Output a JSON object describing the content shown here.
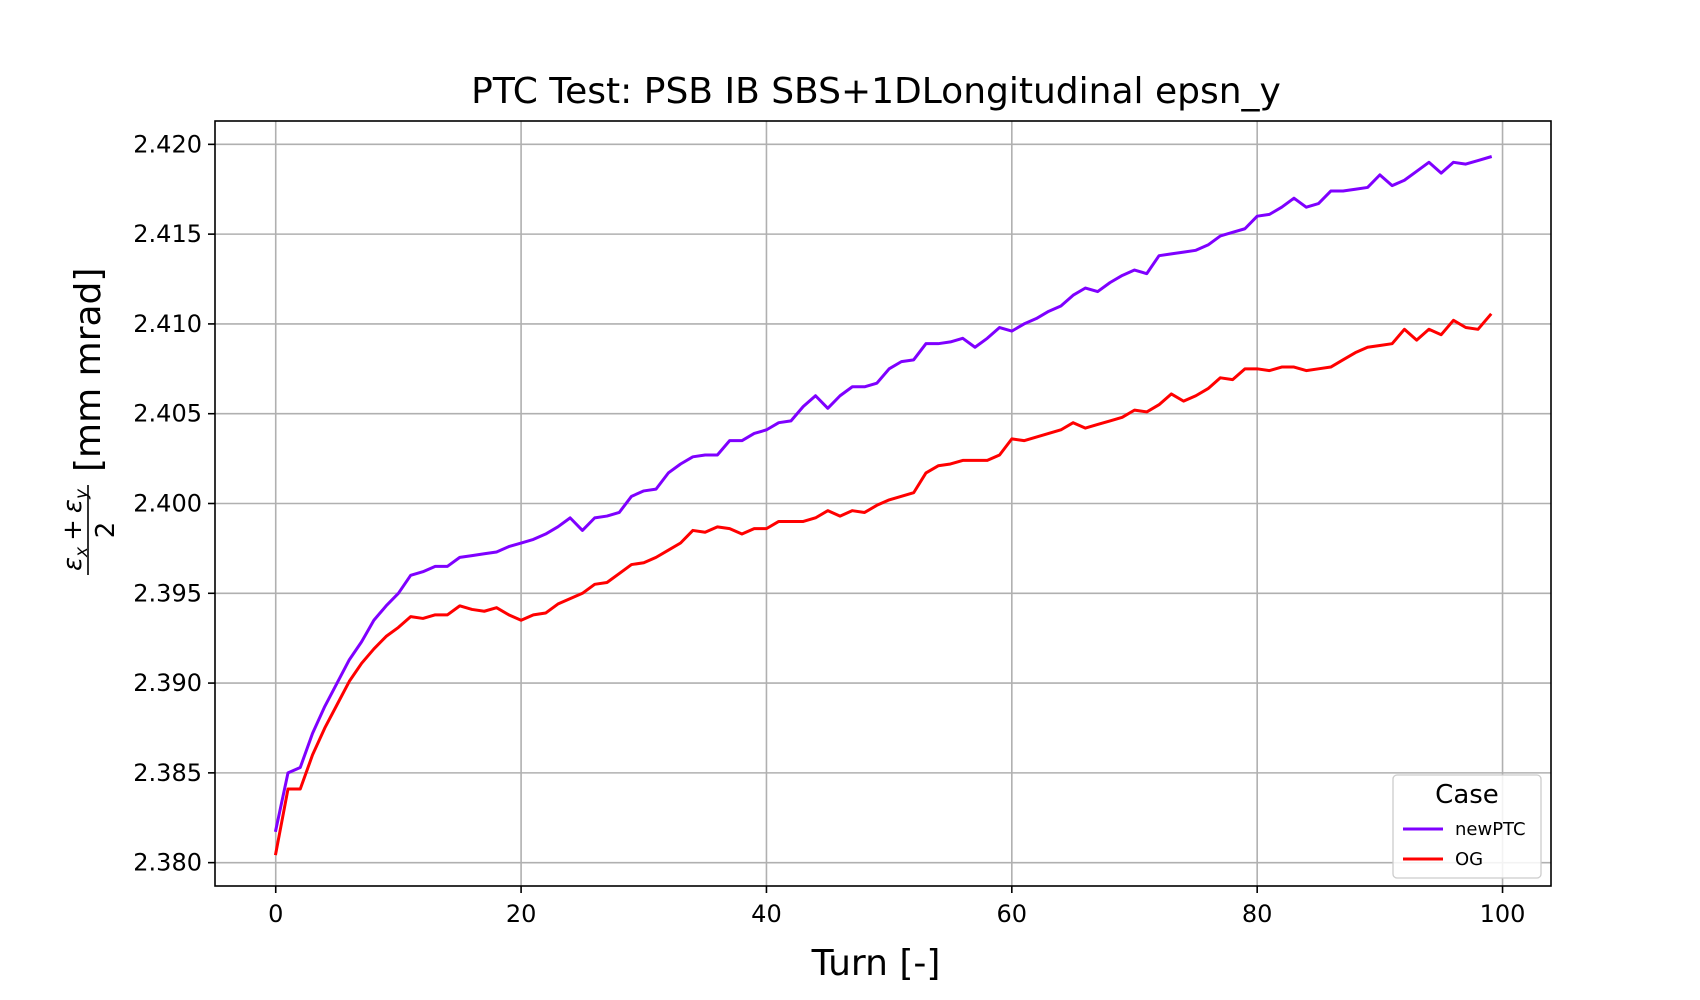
{
  "chart_data": {
    "type": "line",
    "title": "PTC Test: PSB IB SBS+1DLongitudinal epsn_y",
    "xlabel": "Turn [-]",
    "ylabel": {
      "eps_x": "ε",
      "sub_x": "x",
      "plus": "+",
      "eps_y": "ε",
      "sub_y": "y",
      "denominator": "2",
      "unit": "[mm mrad]"
    },
    "xlim": [
      -4.95,
      103.95
    ],
    "ylim": [
      2.3787,
      2.4213
    ],
    "xticks": [
      0,
      20,
      40,
      60,
      80,
      100
    ],
    "yticks": [
      2.38,
      2.385,
      2.39,
      2.395,
      2.4,
      2.405,
      2.41,
      2.415,
      2.42
    ],
    "ytick_labels": [
      "2.380",
      "2.385",
      "2.390",
      "2.395",
      "2.400",
      "2.405",
      "2.410",
      "2.415",
      "2.420"
    ],
    "grid": true,
    "legend": {
      "title": "Case",
      "placement": "lower-right"
    },
    "x": [
      0,
      1,
      2,
      3,
      4,
      5,
      6,
      7,
      8,
      9,
      10,
      11,
      12,
      13,
      14,
      15,
      16,
      17,
      18,
      19,
      20,
      21,
      22,
      23,
      24,
      25,
      26,
      27,
      28,
      29,
      30,
      31,
      32,
      33,
      34,
      35,
      36,
      37,
      38,
      39,
      40,
      41,
      42,
      43,
      44,
      45,
      46,
      47,
      48,
      49,
      50,
      51,
      52,
      53,
      54,
      55,
      56,
      57,
      58,
      59,
      60,
      61,
      62,
      63,
      64,
      65,
      66,
      67,
      68,
      69,
      70,
      71,
      72,
      73,
      74,
      75,
      76,
      77,
      78,
      79,
      80,
      81,
      82,
      83,
      84,
      85,
      86,
      87,
      88,
      89,
      90,
      91,
      92,
      93,
      94,
      95,
      96,
      97,
      98,
      99
    ],
    "series": [
      {
        "name": "newPTC",
        "color": "#7f00ff",
        "values": [
          2.3818,
          2.385,
          2.3853,
          2.3872,
          2.3887,
          2.39,
          2.3913,
          2.3923,
          2.3935,
          2.3943,
          2.395,
          2.396,
          2.3962,
          2.3965,
          2.3965,
          2.397,
          2.3971,
          2.3972,
          2.3973,
          2.3976,
          2.3978,
          2.398,
          2.3983,
          2.3987,
          2.3992,
          2.3985,
          2.3992,
          2.3993,
          2.3995,
          2.4004,
          2.4007,
          2.4008,
          2.4017,
          2.4022,
          2.4026,
          2.4027,
          2.4027,
          2.4035,
          2.4035,
          2.4039,
          2.4041,
          2.4045,
          2.4046,
          2.4054,
          2.406,
          2.4053,
          2.406,
          2.4065,
          2.4065,
          2.4067,
          2.4075,
          2.4079,
          2.408,
          2.4089,
          2.4089,
          2.409,
          2.4092,
          2.4087,
          2.4092,
          2.4098,
          2.4096,
          2.41,
          2.4103,
          2.4107,
          2.411,
          2.4116,
          2.412,
          2.4118,
          2.4123,
          2.4127,
          2.413,
          2.4128,
          2.4138,
          2.4139,
          2.414,
          2.4141,
          2.4144,
          2.4149,
          2.4151,
          2.4153,
          2.416,
          2.4161,
          2.4165,
          2.417,
          2.4165,
          2.4167,
          2.4174,
          2.4174,
          2.4175,
          2.4176,
          2.4183,
          2.4177,
          2.418,
          2.4185,
          2.419,
          2.4184,
          2.419,
          2.4189,
          2.4191,
          2.4193
        ]
      },
      {
        "name": "OG",
        "color": "#ff0000",
        "values": [
          2.3805,
          2.3841,
          2.3841,
          2.386,
          2.3875,
          2.3888,
          2.3901,
          2.3911,
          2.3919,
          2.3926,
          2.3931,
          2.3937,
          2.3936,
          2.3938,
          2.3938,
          2.3943,
          2.3941,
          2.394,
          2.3942,
          2.3938,
          2.3935,
          2.3938,
          2.3939,
          2.3944,
          2.3947,
          2.395,
          2.3955,
          2.3956,
          2.3961,
          2.3966,
          2.3967,
          2.397,
          2.3974,
          2.3978,
          2.3985,
          2.3984,
          2.3987,
          2.3986,
          2.3983,
          2.3986,
          2.3986,
          2.399,
          2.399,
          2.399,
          2.3992,
          2.3996,
          2.3993,
          2.3996,
          2.3995,
          2.3999,
          2.4002,
          2.4004,
          2.4006,
          2.4017,
          2.4021,
          2.4022,
          2.4024,
          2.4024,
          2.4024,
          2.4027,
          2.4036,
          2.4035,
          2.4037,
          2.4039,
          2.4041,
          2.4045,
          2.4042,
          2.4044,
          2.4046,
          2.4048,
          2.4052,
          2.4051,
          2.4055,
          2.4061,
          2.4057,
          2.406,
          2.4064,
          2.407,
          2.4069,
          2.4075,
          2.4075,
          2.4074,
          2.4076,
          2.4076,
          2.4074,
          2.4075,
          2.4076,
          2.408,
          2.4084,
          2.4087,
          2.4088,
          2.4089,
          2.4097,
          2.4091,
          2.4097,
          2.4094,
          2.4102,
          2.4098,
          2.4097,
          2.4105
        ]
      }
    ]
  }
}
